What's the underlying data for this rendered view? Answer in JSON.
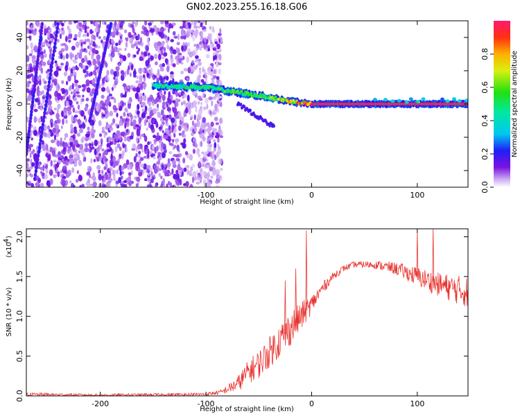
{
  "title": "GN02.2023.255.16.18.G06",
  "colors": {
    "snr_line": "#e8302c",
    "band_core": "#e8245a",
    "scatter": "#7b12e0"
  },
  "chart_data": [
    {
      "type": "heatmap",
      "title": "GN02.2023.255.16.18.G06",
      "xlabel": "Height of straight line (km)",
      "ylabel": "Frequency (Hz)",
      "xlim": [
        -270,
        148
      ],
      "ylim": [
        -50,
        50
      ],
      "x_ticks": [
        -200,
        -100,
        0,
        100
      ],
      "x_tick_labels": [
        "-200",
        "-100",
        "0",
        "100"
      ],
      "y_ticks": [
        -40,
        -20,
        0,
        20,
        40
      ],
      "y_tick_labels": [
        "-40",
        "-20",
        "0",
        "20",
        "40"
      ],
      "colorbar": {
        "label": "Normalized spectral amplitude",
        "range": [
          0,
          1
        ],
        "ticks": [
          0,
          0.2,
          0.4,
          0.6,
          0.8
        ],
        "tick_labels": [
          "0.0",
          "0.2",
          "0.4",
          "0.6",
          "0.8"
        ],
        "colormap": "rainbow"
      },
      "features": {
        "scatter_region_x": [
          -270,
          -85
        ],
        "tracking_band": [
          {
            "x": -150,
            "freq": 11,
            "amp": 0.5
          },
          {
            "x": -100,
            "freq": 10,
            "amp": 0.55
          },
          {
            "x": -70,
            "freq": 7,
            "amp": 0.6
          },
          {
            "x": -40,
            "freq": 4,
            "amp": 0.65
          },
          {
            "x": -20,
            "freq": 1.5,
            "amp": 0.85
          },
          {
            "x": 0,
            "freq": 0,
            "amp": 0.95
          },
          {
            "x": 148,
            "freq": 0,
            "amp": 0.95
          }
        ],
        "diagonal_streaks": [
          {
            "x_start": -270,
            "freq_start": -30,
            "x_end": -255,
            "freq_end": 48
          },
          {
            "x_start": -262,
            "freq_start": -45,
            "x_end": -240,
            "freq_end": 48
          },
          {
            "x_start": -210,
            "freq_start": -10,
            "x_end": -190,
            "freq_end": 48
          }
        ]
      }
    },
    {
      "type": "line",
      "xlabel": "Height of straight line (km)",
      "ylabel": "SNR (10 * v/v)",
      "multiplier_label": "(x10",
      "multiplier_exponent": "4",
      "multiplier_close": ")",
      "xlim": [
        -270,
        148
      ],
      "ylim": [
        0,
        2.1
      ],
      "x_ticks": [
        -200,
        -100,
        0,
        100
      ],
      "x_tick_labels": [
        "-200",
        "-100",
        "0",
        "100"
      ],
      "y_ticks": [
        0,
        0.5,
        1.0,
        1.5,
        2.0
      ],
      "y_tick_labels": [
        "0.0",
        "0.5",
        "1.0",
        "1.5",
        "2.0"
      ],
      "series": [
        {
          "x": [
            -270,
            -200,
            -100,
            -85,
            -70,
            -60,
            -50,
            -40,
            -30,
            -20,
            -10,
            0,
            10,
            20,
            30,
            40,
            60,
            80,
            100,
            120,
            148
          ],
          "y": [
            0.02,
            0.01,
            0.02,
            0.05,
            0.15,
            0.3,
            0.4,
            0.55,
            0.7,
            0.85,
            1.0,
            1.15,
            1.35,
            1.5,
            1.6,
            1.65,
            1.65,
            1.6,
            1.5,
            1.4,
            1.3
          ],
          "noise": [
            0.02,
            0.015,
            0.02,
            0.03,
            0.1,
            0.15,
            0.18,
            0.2,
            0.22,
            0.22,
            0.18,
            0.12,
            0.08,
            0.05,
            0.04,
            0.04,
            0.05,
            0.08,
            0.12,
            0.15,
            0.2
          ]
        }
      ],
      "spikes": [
        {
          "x": -25,
          "y": 1.45
        },
        {
          "x": -15,
          "y": 1.6
        },
        {
          "x": -5,
          "y": 2.08
        },
        {
          "x": 100,
          "y": 2.06
        },
        {
          "x": 115,
          "y": 2.1
        }
      ]
    }
  ]
}
